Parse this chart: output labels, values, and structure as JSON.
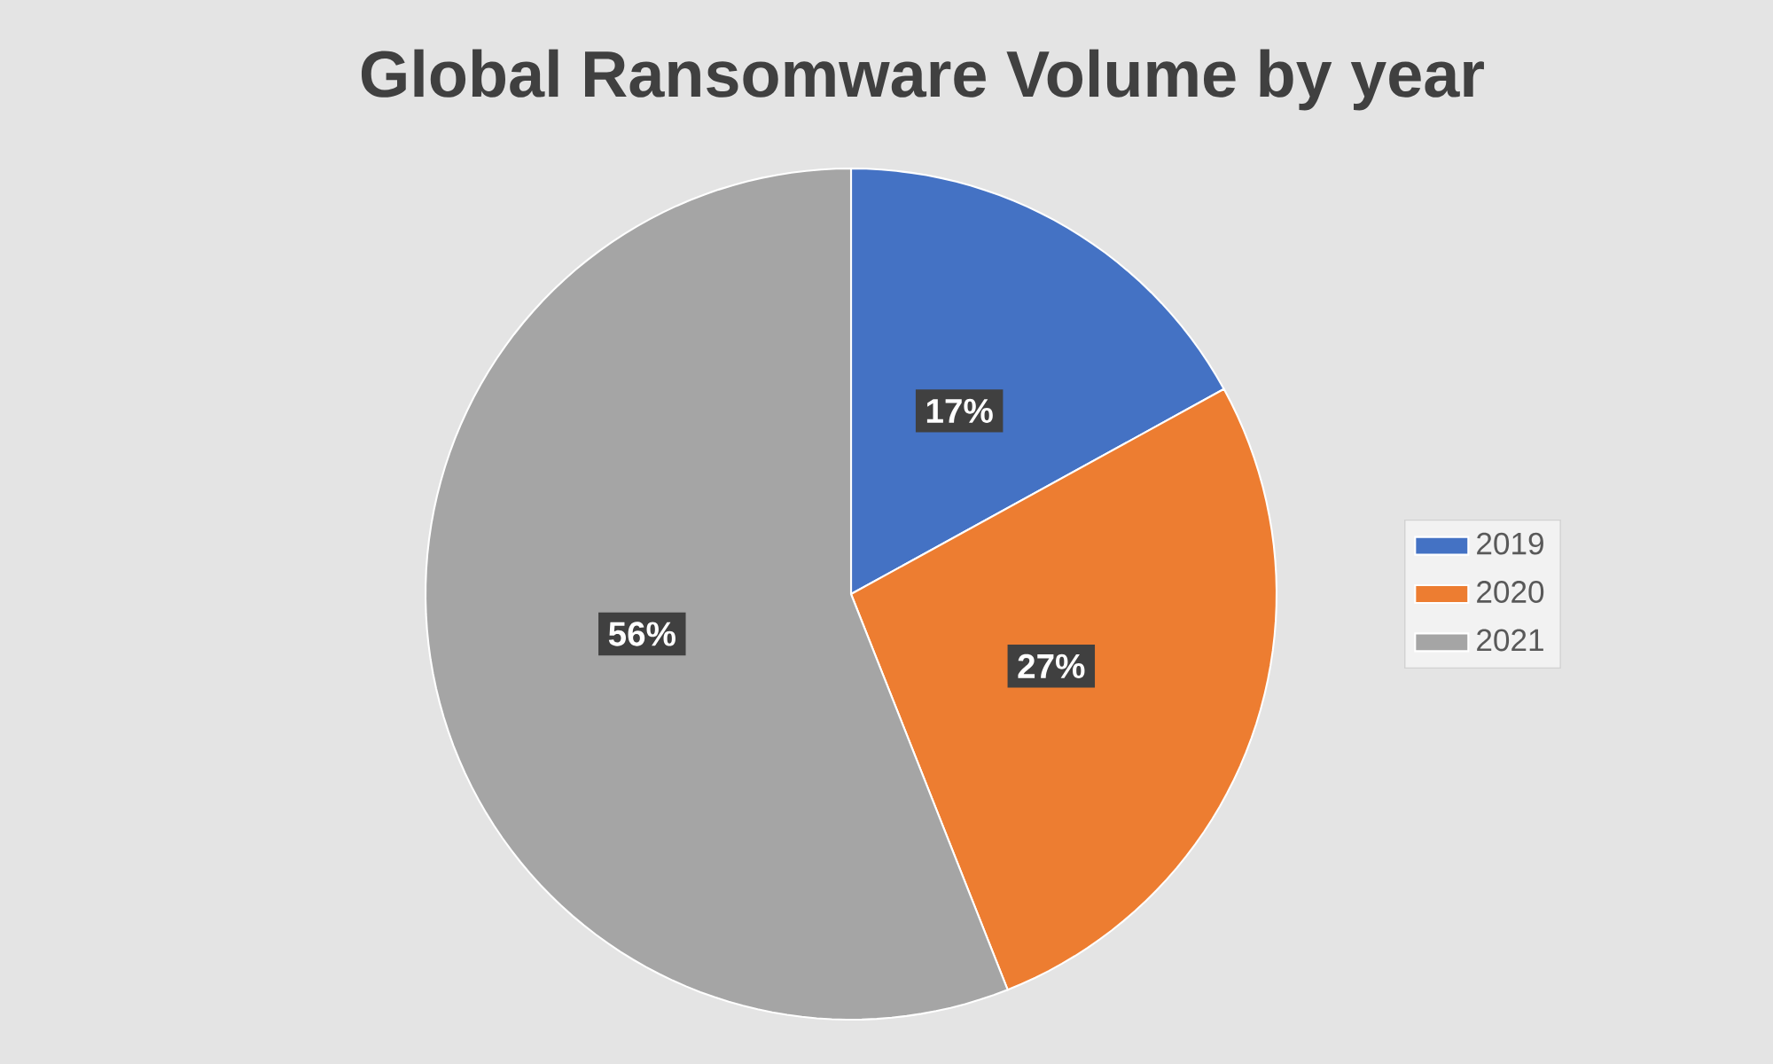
{
  "chart_data": {
    "type": "pie",
    "title": "Global Ransomware Volume by year",
    "categories": [
      "2019",
      "2020",
      "2021"
    ],
    "values": [
      17,
      27,
      56
    ],
    "value_labels": [
      "17%",
      "27%",
      "56%"
    ],
    "colors": [
      "#4472c4",
      "#ed7d31",
      "#a5a5a5"
    ],
    "legend": "right"
  }
}
